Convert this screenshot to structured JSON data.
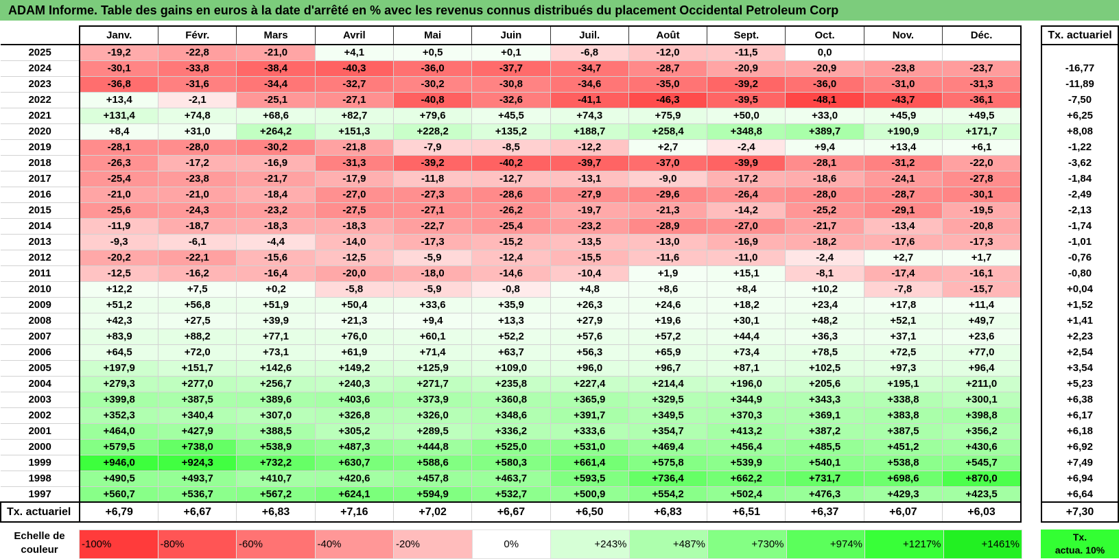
{
  "title": "ADAM Informe. Table des gains en euros à la date d'arrêté en % avec les revenus connus distribués du placement Occidental Petroleum Corp",
  "months": [
    "Janv.",
    "Févr.",
    "Mars",
    "Avril",
    "Mai",
    "Juin",
    "Juil.",
    "Août",
    "Sept.",
    "Oct.",
    "Nov.",
    "Déc."
  ],
  "actuarial_header": "Tx. actuariel",
  "rows": [
    {
      "year": "2025",
      "values": [
        "-19,2",
        "-22,8",
        "-21,0",
        "+4,1",
        "+0,5",
        "+0,1",
        "-6,8",
        "-12,0",
        "-11,5",
        "0,0",
        "",
        ""
      ],
      "rate": ""
    },
    {
      "year": "2024",
      "values": [
        "-30,1",
        "-33,8",
        "-38,4",
        "-40,3",
        "-36,0",
        "-37,7",
        "-34,7",
        "-28,7",
        "-20,9",
        "-20,9",
        "-23,8",
        "-23,7"
      ],
      "rate": "-16,77"
    },
    {
      "year": "2023",
      "values": [
        "-36,8",
        "-31,6",
        "-34,4",
        "-32,7",
        "-30,2",
        "-30,8",
        "-34,6",
        "-35,0",
        "-39,2",
        "-36,0",
        "-31,0",
        "-31,3"
      ],
      "rate": "-11,89"
    },
    {
      "year": "2022",
      "values": [
        "+13,4",
        "-2,1",
        "-25,1",
        "-27,1",
        "-40,8",
        "-32,6",
        "-41,1",
        "-46,3",
        "-39,5",
        "-48,1",
        "-43,7",
        "-36,1"
      ],
      "rate": "-7,50"
    },
    {
      "year": "2021",
      "values": [
        "+131,4",
        "+74,8",
        "+68,6",
        "+82,7",
        "+79,6",
        "+45,5",
        "+74,3",
        "+75,9",
        "+50,0",
        "+33,0",
        "+45,9",
        "+49,5"
      ],
      "rate": "+6,25"
    },
    {
      "year": "2020",
      "values": [
        "+8,4",
        "+31,0",
        "+264,2",
        "+151,3",
        "+228,2",
        "+135,2",
        "+188,7",
        "+258,4",
        "+348,8",
        "+389,7",
        "+190,9",
        "+171,7"
      ],
      "rate": "+8,08"
    },
    {
      "year": "2019",
      "values": [
        "-28,1",
        "-28,0",
        "-30,2",
        "-21,8",
        "-7,9",
        "-8,5",
        "-12,2",
        "+2,7",
        "-2,4",
        "+9,4",
        "+13,4",
        "+6,1"
      ],
      "rate": "-1,22"
    },
    {
      "year": "2018",
      "values": [
        "-26,3",
        "-17,2",
        "-16,9",
        "-31,3",
        "-39,2",
        "-40,2",
        "-39,7",
        "-37,0",
        "-39,9",
        "-28,1",
        "-31,2",
        "-22,0"
      ],
      "rate": "-3,62"
    },
    {
      "year": "2017",
      "values": [
        "-25,4",
        "-23,8",
        "-21,7",
        "-17,9",
        "-11,8",
        "-12,7",
        "-13,1",
        "-9,0",
        "-17,2",
        "-18,6",
        "-24,1",
        "-27,8"
      ],
      "rate": "-1,84"
    },
    {
      "year": "2016",
      "values": [
        "-21,0",
        "-21,0",
        "-18,4",
        "-27,0",
        "-27,3",
        "-28,6",
        "-27,9",
        "-29,6",
        "-26,4",
        "-28,0",
        "-28,7",
        "-30,1"
      ],
      "rate": "-2,49"
    },
    {
      "year": "2015",
      "values": [
        "-25,6",
        "-24,3",
        "-23,2",
        "-27,5",
        "-27,1",
        "-26,2",
        "-19,7",
        "-21,3",
        "-14,2",
        "-25,2",
        "-29,1",
        "-19,5"
      ],
      "rate": "-2,13"
    },
    {
      "year": "2014",
      "values": [
        "-11,9",
        "-18,7",
        "-18,3",
        "-18,3",
        "-22,7",
        "-25,4",
        "-23,2",
        "-28,9",
        "-27,0",
        "-21,7",
        "-13,4",
        "-20,8"
      ],
      "rate": "-1,74"
    },
    {
      "year": "2013",
      "values": [
        "-9,3",
        "-6,1",
        "-4,4",
        "-14,0",
        "-17,3",
        "-15,2",
        "-13,5",
        "-13,0",
        "-16,9",
        "-18,2",
        "-17,6",
        "-17,3"
      ],
      "rate": "-1,01"
    },
    {
      "year": "2012",
      "values": [
        "-20,2",
        "-22,1",
        "-15,6",
        "-12,5",
        "-5,9",
        "-12,4",
        "-15,5",
        "-11,6",
        "-11,0",
        "-2,4",
        "+2,7",
        "+1,7"
      ],
      "rate": "-0,76"
    },
    {
      "year": "2011",
      "values": [
        "-12,5",
        "-16,2",
        "-16,4",
        "-20,0",
        "-18,0",
        "-14,6",
        "-10,4",
        "+1,9",
        "+15,1",
        "-8,1",
        "-17,4",
        "-16,1"
      ],
      "rate": "-0,80"
    },
    {
      "year": "2010",
      "values": [
        "+12,2",
        "+7,5",
        "+0,2",
        "-5,8",
        "-5,9",
        "-0,8",
        "+4,8",
        "+8,6",
        "+8,4",
        "+10,2",
        "-7,8",
        "-15,7"
      ],
      "rate": "+0,04"
    },
    {
      "year": "2009",
      "values": [
        "+51,2",
        "+56,8",
        "+51,9",
        "+50,4",
        "+33,6",
        "+35,9",
        "+26,3",
        "+24,6",
        "+18,2",
        "+23,4",
        "+17,8",
        "+11,4"
      ],
      "rate": "+1,52"
    },
    {
      "year": "2008",
      "values": [
        "+42,3",
        "+27,5",
        "+39,9",
        "+21,3",
        "+9,4",
        "+13,3",
        "+27,9",
        "+19,6",
        "+30,1",
        "+48,2",
        "+52,1",
        "+49,7"
      ],
      "rate": "+1,41"
    },
    {
      "year": "2007",
      "values": [
        "+83,9",
        "+88,2",
        "+77,1",
        "+76,0",
        "+60,1",
        "+52,2",
        "+57,6",
        "+57,2",
        "+44,4",
        "+36,3",
        "+37,1",
        "+23,6"
      ],
      "rate": "+2,23"
    },
    {
      "year": "2006",
      "values": [
        "+64,5",
        "+72,0",
        "+73,1",
        "+61,9",
        "+71,4",
        "+63,7",
        "+56,3",
        "+65,9",
        "+73,4",
        "+78,5",
        "+72,5",
        "+77,0"
      ],
      "rate": "+2,54"
    },
    {
      "year": "2005",
      "values": [
        "+197,9",
        "+151,7",
        "+142,6",
        "+149,2",
        "+125,9",
        "+109,0",
        "+96,0",
        "+96,7",
        "+87,1",
        "+102,5",
        "+97,3",
        "+96,4"
      ],
      "rate": "+3,54"
    },
    {
      "year": "2004",
      "values": [
        "+279,3",
        "+277,0",
        "+256,7",
        "+240,3",
        "+271,7",
        "+235,8",
        "+227,4",
        "+214,4",
        "+196,0",
        "+205,6",
        "+195,1",
        "+211,0"
      ],
      "rate": "+5,23"
    },
    {
      "year": "2003",
      "values": [
        "+399,8",
        "+387,5",
        "+389,6",
        "+403,6",
        "+373,9",
        "+360,8",
        "+365,9",
        "+329,5",
        "+344,9",
        "+343,3",
        "+338,8",
        "+300,1"
      ],
      "rate": "+6,38"
    },
    {
      "year": "2002",
      "values": [
        "+352,3",
        "+340,4",
        "+307,0",
        "+326,8",
        "+326,0",
        "+348,6",
        "+391,7",
        "+349,5",
        "+370,3",
        "+369,1",
        "+383,8",
        "+398,8"
      ],
      "rate": "+6,17"
    },
    {
      "year": "2001",
      "values": [
        "+464,0",
        "+427,9",
        "+388,5",
        "+305,2",
        "+289,5",
        "+336,2",
        "+333,6",
        "+354,7",
        "+413,2",
        "+387,2",
        "+387,5",
        "+356,2"
      ],
      "rate": "+6,18"
    },
    {
      "year": "2000",
      "values": [
        "+579,5",
        "+738,0",
        "+538,9",
        "+487,3",
        "+444,8",
        "+525,0",
        "+531,0",
        "+469,4",
        "+456,4",
        "+485,5",
        "+451,2",
        "+430,6"
      ],
      "rate": "+6,92"
    },
    {
      "year": "1999",
      "values": [
        "+946,0",
        "+924,3",
        "+732,2",
        "+630,7",
        "+588,6",
        "+580,3",
        "+661,4",
        "+575,8",
        "+539,9",
        "+540,1",
        "+538,8",
        "+545,7"
      ],
      "rate": "+7,49"
    },
    {
      "year": "1998",
      "values": [
        "+490,5",
        "+493,7",
        "+410,7",
        "+420,6",
        "+457,8",
        "+463,7",
        "+593,5",
        "+736,4",
        "+662,2",
        "+731,7",
        "+698,6",
        "+870,0"
      ],
      "rate": "+6,94"
    },
    {
      "year": "1997",
      "values": [
        "+560,7",
        "+536,7",
        "+567,2",
        "+624,1",
        "+594,9",
        "+532,7",
        "+500,9",
        "+554,2",
        "+502,4",
        "+476,3",
        "+429,3",
        "+423,5"
      ],
      "rate": "+6,64"
    }
  ],
  "footer": {
    "label": "Tx. actuariel",
    "values": [
      "+6,79",
      "+6,67",
      "+6,83",
      "+7,16",
      "+7,02",
      "+6,67",
      "+6,50",
      "+6,83",
      "+6,51",
      "+6,37",
      "+6,07",
      "+6,03"
    ],
    "rate": "+7,30"
  },
  "legend": {
    "label_line1": "Echelle de",
    "label_line2": "couleur",
    "steps": [
      {
        "label": "-100%",
        "color": "#ff3b3b"
      },
      {
        "label": "-80%",
        "color": "#ff5555"
      },
      {
        "label": "-60%",
        "color": "#ff7373"
      },
      {
        "label": "-40%",
        "color": "#ff9797"
      },
      {
        "label": "-20%",
        "color": "#ffbcbc"
      },
      {
        "label": "0%",
        "color": "#ffffff"
      },
      {
        "label": "+243%",
        "color": "#d6ffd6"
      },
      {
        "label": "+487%",
        "color": "#adffad"
      },
      {
        "label": "+730%",
        "color": "#84ff84"
      },
      {
        "label": "+974%",
        "color": "#5bff5b"
      },
      {
        "label": "+1217%",
        "color": "#38ff38"
      },
      {
        "label": "+1461%",
        "color": "#22f022"
      }
    ],
    "reference_line1": "Tx.",
    "reference_line2": "actua. 10%",
    "reference_color": "#33ff33"
  }
}
